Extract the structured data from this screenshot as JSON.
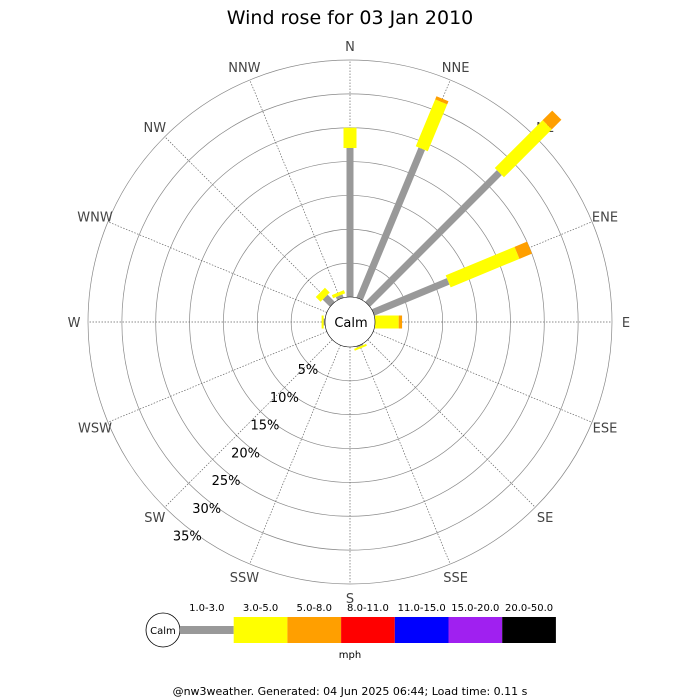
{
  "chart_data": {
    "type": "wind-rose",
    "title": "Wind rose for 03 Jan 2010",
    "directions": [
      "N",
      "NNE",
      "NE",
      "ENE",
      "E",
      "ESE",
      "SE",
      "SSE",
      "S",
      "SSW",
      "SW",
      "WSW",
      "W",
      "WNW",
      "NW",
      "NNW"
    ],
    "ring_percent_labels": [
      "5%",
      "10%",
      "15%",
      "20%",
      "25%",
      "30%",
      "35%"
    ],
    "ring_max_percent": 35,
    "calm_label": "Calm",
    "speed_bins": [
      {
        "label": "1.0-3.0",
        "color": "#999999"
      },
      {
        "label": "3.0-5.0",
        "color": "#ffff00"
      },
      {
        "label": "5.0-8.0",
        "color": "#ff9f00"
      },
      {
        "label": "8.0-11.0",
        "color": "#ff0000"
      },
      {
        "label": "11.0-15.0",
        "color": "#0000ff"
      },
      {
        "label": "15.0-20.0",
        "color": "#a020f0"
      },
      {
        "label": "20.0-50.0",
        "color": "#000000"
      }
    ],
    "units": "mph",
    "series": [
      {
        "direction": "N",
        "segments": [
          22,
          3,
          0
        ]
      },
      {
        "direction": "NNE",
        "segments": [
          24,
          7.5,
          0.5
        ]
      },
      {
        "direction": "NE",
        "segments": [
          27.5,
          10,
          2
        ]
      },
      {
        "direction": "ENE",
        "segments": [
          12,
          11,
          2
        ]
      },
      {
        "direction": "E",
        "segments": [
          0,
          3.5,
          0.5
        ]
      },
      {
        "direction": "NW",
        "segments": [
          1.5,
          1,
          0
        ]
      },
      {
        "direction": "NNW",
        "segments": [
          0.5,
          0.5,
          0
        ]
      },
      {
        "direction": "W",
        "segments": [
          0.2,
          0.3,
          0
        ]
      },
      {
        "direction": "SSE",
        "segments": [
          0.2,
          0.3,
          0
        ]
      }
    ]
  },
  "footer": "@nw3weather. Generated: 04 Jun 2025 06:44; Load time: 0.11 s"
}
